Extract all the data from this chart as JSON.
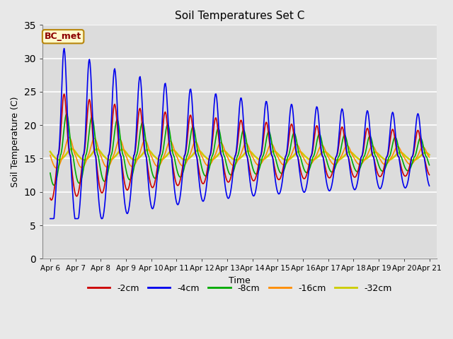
{
  "title": "Soil Temperatures Set C",
  "xlabel": "Time",
  "ylabel": "Soil Temperature (C)",
  "ylim": [
    0,
    35
  ],
  "yticks": [
    0,
    5,
    10,
    15,
    20,
    25,
    30,
    35
  ],
  "annotation": "BC_met",
  "annotation_color": "#8B0000",
  "annotation_bg": "#FFFACD",
  "annotation_edge": "#B8860B",
  "fig_bg": "#E8E8E8",
  "plot_bg": "#DCDCDC",
  "grid_color": "#FFFFFF",
  "legend_labels": [
    "-2cm",
    "-4cm",
    "-8cm",
    "-16cm",
    "-32cm"
  ],
  "line_colors": [
    "#CC0000",
    "#0000EE",
    "#00AA00",
    "#FF8C00",
    "#CCCC00"
  ],
  "line_widths": [
    1.2,
    1.2,
    1.2,
    1.2,
    1.8
  ],
  "xtick_labels": [
    "Apr 6",
    "Apr 7",
    "Apr 8",
    "Apr 9",
    "Apr 10",
    "Apr 11",
    "Apr 12",
    "Apr 13",
    "Apr 14",
    "Apr 15",
    "Apr 16",
    "Apr 17",
    "Apr 18",
    "Apr 19",
    "Apr 20",
    "Apr 21"
  ],
  "num_points": 600
}
